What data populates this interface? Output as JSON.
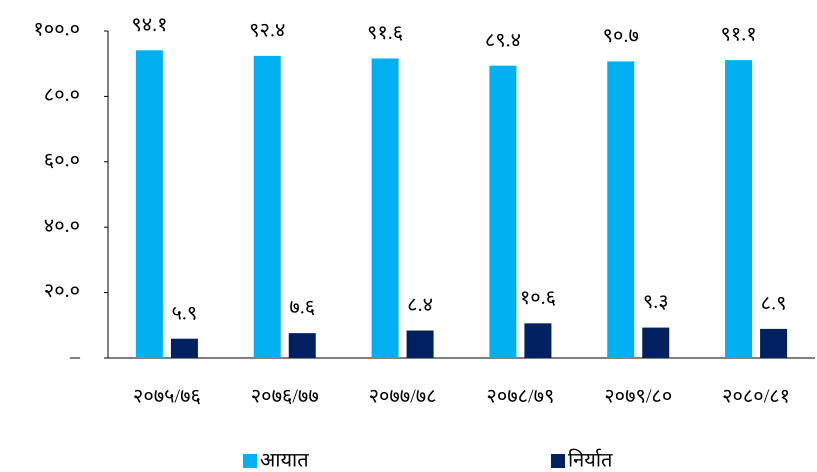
{
  "chart_data": {
    "type": "bar",
    "categories": [
      "२०७५/७६",
      "२०७६/७७",
      "२०७७/७८",
      "२०७८/७९",
      "२०७९/८०",
      "२०८०/८१"
    ],
    "series": [
      {
        "name": "आयात",
        "color": "#00b0f0",
        "values": [
          94.1,
          92.4,
          91.6,
          89.4,
          90.7,
          91.1
        ],
        "value_labels": [
          "९४.१",
          "९२.४",
          "९१.६",
          "८९.४",
          "९०.७",
          "९१.१"
        ]
      },
      {
        "name": "निर्यात",
        "color": "#002060",
        "values": [
          5.9,
          7.6,
          8.4,
          10.6,
          9.3,
          8.9
        ],
        "value_labels": [
          "५.९",
          "७.६",
          "८.४",
          "१०.६",
          "९.३",
          "८.९"
        ]
      }
    ],
    "ylim": [
      0,
      100
    ],
    "yticks": [
      {
        "value": 0,
        "label": "–"
      },
      {
        "value": 20,
        "label": "२०.०"
      },
      {
        "value": 40,
        "label": "४०.०"
      },
      {
        "value": 60,
        "label": "६०.०"
      },
      {
        "value": 80,
        "label": "८०.०"
      },
      {
        "value": 100,
        "label": "१००.०"
      }
    ],
    "legend": "bottom"
  }
}
